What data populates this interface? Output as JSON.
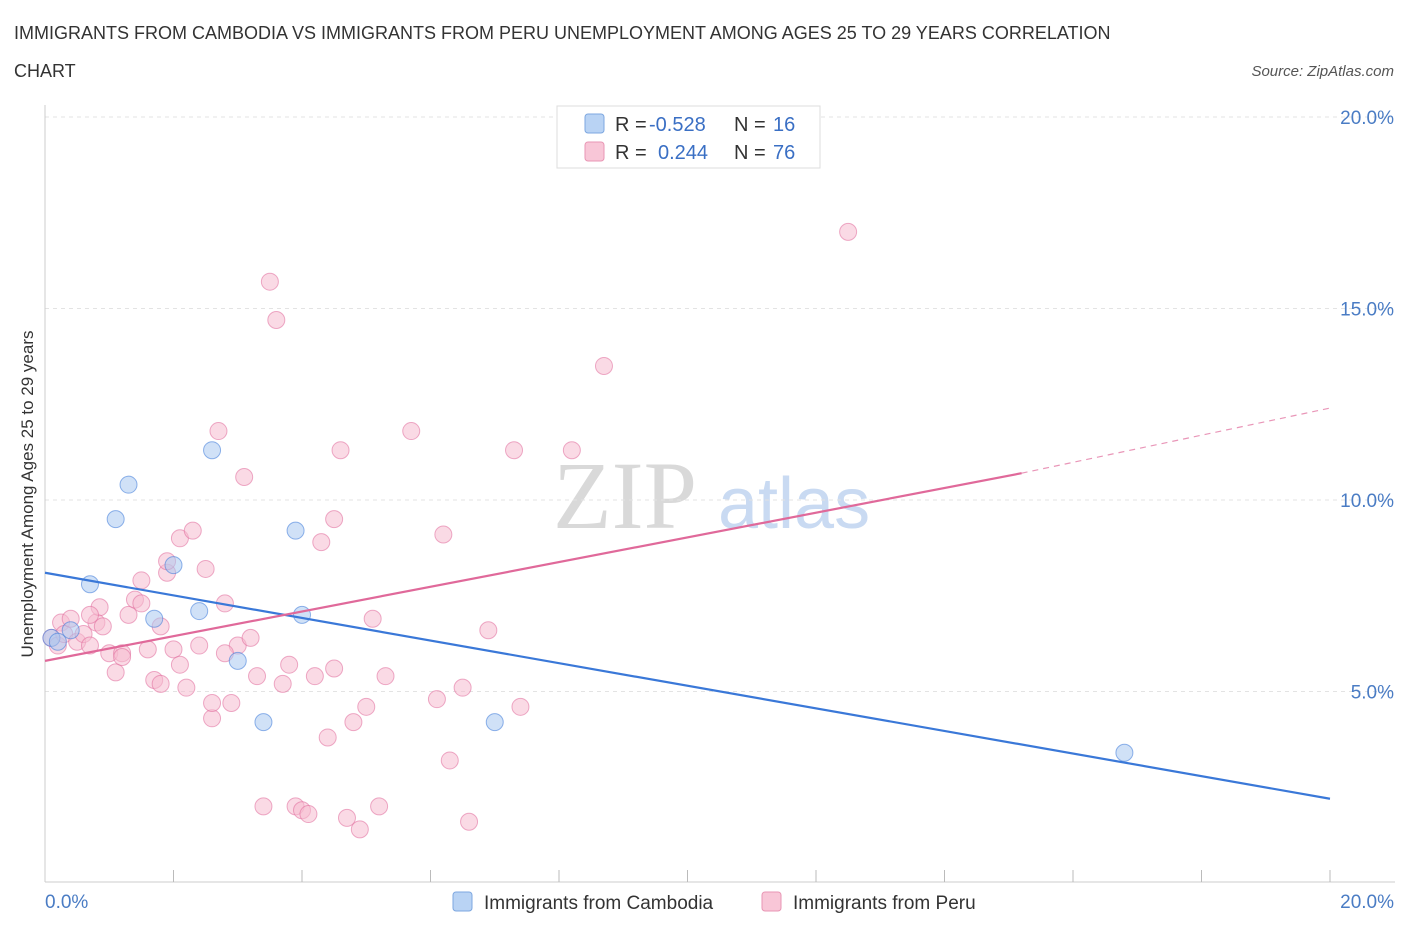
{
  "chart_data": {
    "type": "scatter",
    "title_line1": "IMMIGRANTS FROM CAMBODIA VS IMMIGRANTS FROM PERU UNEMPLOYMENT AMONG AGES 25 TO 29 YEARS CORRELATION",
    "title_line2": "CHART",
    "source": "Source: ZipAtlas.com",
    "ylabel": "Unemployment Among Ages 25 to 29 years",
    "xlim": [
      0,
      20
    ],
    "ylim": [
      0,
      20
    ],
    "x_tick_labels": {
      "left": "0.0%",
      "right": "20.0%"
    },
    "y_ticks": [
      {
        "value": 5,
        "label": "5.0%"
      },
      {
        "value": 10,
        "label": "10.0%"
      },
      {
        "value": 15,
        "label": "15.0%"
      },
      {
        "value": 20,
        "label": "20.0%"
      }
    ],
    "watermark": {
      "zip": "ZIP",
      "atlas": "atlas"
    },
    "stats": {
      "cambodia": {
        "r_label": "R =",
        "r": "-0.528",
        "n_label": "N =",
        "n": "16"
      },
      "peru": {
        "r_label": "R =",
        "r": "0.244",
        "n_label": "N =",
        "n": "76"
      }
    },
    "series": [
      {
        "name": "Immigrants from Cambodia",
        "color": "#3a78d8",
        "fill": "#a9c8f0",
        "trend": {
          "x1": 0.0,
          "y1": 8.1,
          "x2": 20.0,
          "y2": 2.2
        },
        "points": [
          [
            0.1,
            6.4
          ],
          [
            0.2,
            6.3
          ],
          [
            0.4,
            6.6
          ],
          [
            0.7,
            7.8
          ],
          [
            1.3,
            10.4
          ],
          [
            1.7,
            6.9
          ],
          [
            2.0,
            8.3
          ],
          [
            2.4,
            7.1
          ],
          [
            2.6,
            11.3
          ],
          [
            3.0,
            5.8
          ],
          [
            3.4,
            4.2
          ],
          [
            3.9,
            9.2
          ],
          [
            4.0,
            7.0
          ],
          [
            7.0,
            4.2
          ],
          [
            16.8,
            3.4
          ],
          [
            1.1,
            9.5
          ]
        ]
      },
      {
        "name": "Immigrants from Peru",
        "color": "#e0699a",
        "fill": "#f6bcd0",
        "trend": {
          "x1": 0.0,
          "y1": 5.8,
          "x2": 15.2,
          "y2": 10.7
        },
        "trend_dashed": {
          "x1": 15.2,
          "y1": 10.7,
          "x2": 20.0,
          "y2": 12.4
        },
        "points": [
          [
            0.1,
            6.4
          ],
          [
            0.2,
            6.2
          ],
          [
            0.25,
            6.8
          ],
          [
            0.3,
            6.5
          ],
          [
            0.4,
            6.9
          ],
          [
            0.5,
            6.3
          ],
          [
            0.6,
            6.5
          ],
          [
            0.7,
            6.2
          ],
          [
            0.8,
            6.8
          ],
          [
            0.9,
            6.7
          ],
          [
            0.85,
            7.2
          ],
          [
            1.0,
            6.0
          ],
          [
            1.1,
            5.5
          ],
          [
            1.2,
            6.0
          ],
          [
            1.3,
            7.0
          ],
          [
            1.4,
            7.4
          ],
          [
            1.5,
            7.9
          ],
          [
            1.6,
            6.1
          ],
          [
            1.7,
            5.3
          ],
          [
            1.8,
            6.7
          ],
          [
            1.9,
            8.1
          ],
          [
            1.8,
            5.2
          ],
          [
            2.0,
            6.1
          ],
          [
            2.1,
            5.7
          ],
          [
            2.1,
            9.0
          ],
          [
            2.2,
            5.1
          ],
          [
            2.3,
            9.2
          ],
          [
            2.4,
            6.2
          ],
          [
            2.5,
            8.2
          ],
          [
            2.6,
            4.3
          ],
          [
            2.6,
            4.7
          ],
          [
            2.7,
            11.8
          ],
          [
            2.8,
            7.3
          ],
          [
            2.9,
            4.7
          ],
          [
            3.0,
            6.2
          ],
          [
            3.1,
            10.6
          ],
          [
            3.2,
            6.4
          ],
          [
            3.3,
            5.4
          ],
          [
            3.5,
            15.7
          ],
          [
            3.6,
            14.7
          ],
          [
            3.7,
            5.2
          ],
          [
            3.8,
            5.7
          ],
          [
            3.9,
            2.0
          ],
          [
            4.0,
            1.9
          ],
          [
            4.1,
            1.8
          ],
          [
            4.2,
            5.4
          ],
          [
            4.3,
            8.9
          ],
          [
            4.4,
            3.8
          ],
          [
            4.5,
            9.5
          ],
          [
            4.6,
            11.3
          ],
          [
            4.7,
            1.7
          ],
          [
            4.8,
            4.2
          ],
          [
            4.9,
            1.4
          ],
          [
            5.1,
            6.9
          ],
          [
            5.2,
            2.0
          ],
          [
            5.3,
            5.4
          ],
          [
            5.7,
            11.8
          ],
          [
            6.1,
            4.8
          ],
          [
            6.2,
            9.1
          ],
          [
            6.3,
            3.2
          ],
          [
            6.5,
            5.1
          ],
          [
            6.6,
            1.6
          ],
          [
            6.9,
            6.6
          ],
          [
            7.3,
            11.3
          ],
          [
            7.4,
            4.6
          ],
          [
            8.2,
            11.3
          ],
          [
            8.7,
            13.5
          ],
          [
            12.5,
            17.0
          ],
          [
            1.5,
            7.3
          ],
          [
            1.2,
            5.9
          ],
          [
            1.9,
            8.4
          ],
          [
            0.7,
            7.0
          ],
          [
            3.4,
            2.0
          ],
          [
            2.8,
            6.0
          ],
          [
            4.5,
            5.6
          ],
          [
            5.0,
            4.6
          ]
        ]
      }
    ]
  }
}
